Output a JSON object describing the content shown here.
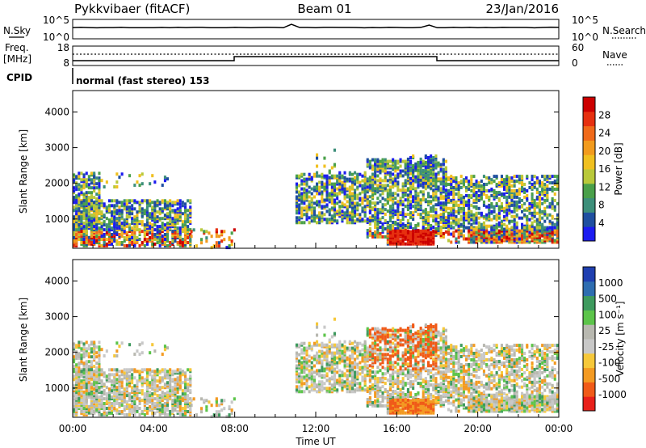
{
  "header": {
    "station": "Pykkvibaer (fitACF)",
    "beam": "Beam 01",
    "date": "23/Jan/2016"
  },
  "side_labels": {
    "nsky": "N.Sky",
    "nsearch": "N.Search",
    "freq_line1": "Freq.",
    "freq_line2": "[MHz]",
    "cpid": "CPID",
    "nave": "Nave"
  },
  "noise_panel": {
    "left_ticks": [
      "10^5",
      "10^0"
    ],
    "right_ticks": [
      "10^5",
      "10^0"
    ]
  },
  "freq_panel": {
    "left_ticks": [
      "18",
      "8"
    ],
    "right_ticks": [
      "60",
      "0"
    ]
  },
  "cpid_text": "normal (fast stereo) 153",
  "colors": {
    "power_scale": [
      "#1c1cf0",
      "#1f4fa0",
      "#3d8f7a",
      "#4aa04a",
      "#b9c93a",
      "#f0c020",
      "#f29b1e",
      "#f06a1a",
      "#e63010",
      "#cc0000"
    ],
    "velocity_scale": [
      "#e8201a",
      "#f05a18",
      "#f39a22",
      "#f6c83a",
      "#c8c8c8",
      "#b8b8b0",
      "#5cc44a",
      "#3e9a5e",
      "#2e6db0",
      "#1f3fb0"
    ]
  },
  "chart_data": [
    {
      "type": "heatmap",
      "title": "",
      "xlabel": "Time UT",
      "ylabel": "Slant Range [km]",
      "x_ticks": [
        "00:00",
        "04:00",
        "08:00",
        "12:00",
        "16:00",
        "20:00",
        "00:00"
      ],
      "y_ticks": [
        "1000",
        "2000",
        "3000",
        "4000"
      ],
      "ylim": [
        180,
        4600
      ],
      "colorbar": {
        "label": "Power [dB]",
        "ticks": [
          "4",
          "8",
          "12",
          "16",
          "20",
          "24",
          "28"
        ],
        "range": [
          0,
          30
        ]
      }
    },
    {
      "type": "heatmap",
      "title": "",
      "xlabel": "Time UT",
      "ylabel": "Slant Range [km]",
      "x_ticks": [
        "00:00",
        "04:00",
        "08:00",
        "12:00",
        "16:00",
        "20:00",
        "00:00"
      ],
      "y_ticks": [
        "1000",
        "2000",
        "3000",
        "4000"
      ],
      "ylim": [
        180,
        4600
      ],
      "colorbar": {
        "label": "Velocity [m s⁻¹]",
        "ticks": [
          "1000",
          "500",
          "100",
          "25",
          "-25",
          "-100",
          "-500",
          "-1000"
        ],
        "range": [
          -1000,
          1000
        ]
      }
    }
  ]
}
